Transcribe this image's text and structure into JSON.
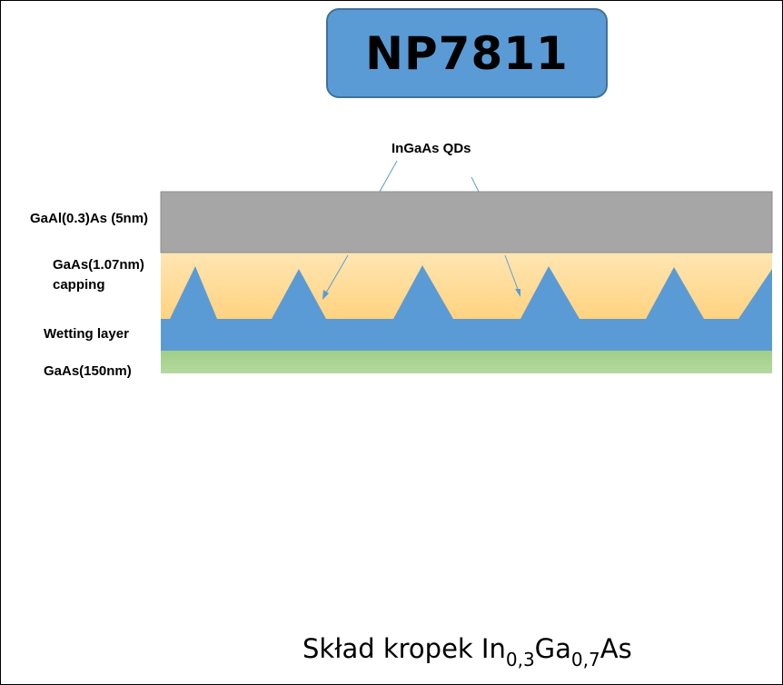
{
  "title": "NP7811",
  "annotation": "InGaAs QDs",
  "layers": {
    "cap": "GaAl(0.3)As (5nm)",
    "capping_1": "GaAs(1.07nm)",
    "capping_2": "capping",
    "wetting": "Wetting layer",
    "substrate": "GaAs(150nm)"
  },
  "composition": {
    "prefix": "Skład kropek In",
    "in_sub": "0,3",
    "ga": "Ga",
    "ga_sub": "0,7",
    "suffix": "As"
  },
  "colors": {
    "title_fill": "#5b9bd5",
    "cap_layer": "#a6a6a6",
    "capping_layer": "#ffd890",
    "wetting_layer": "#5b9bd5",
    "substrate_layer": "#a9d18e",
    "arrow": "#5b9bd5"
  }
}
